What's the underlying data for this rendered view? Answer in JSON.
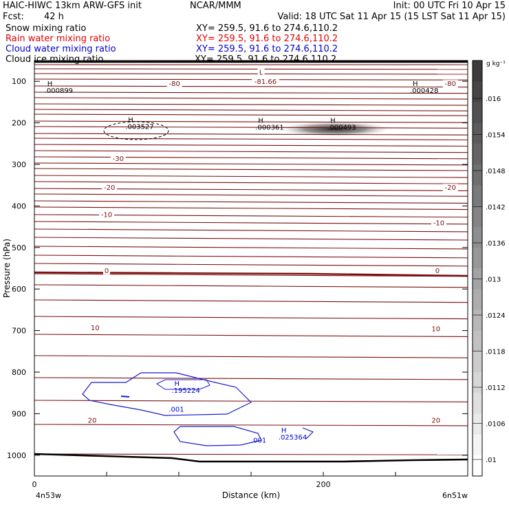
{
  "header": {
    "model": "HAIC-HIWC 13km ARW-GFS init",
    "org": "NCAR/MMM",
    "init": "Init: 00 UTC Fri 10 Apr 15",
    "fcst_label": "Fcst:",
    "fcst_value": "42 h",
    "valid": "Valid: 18 UTC Sat 11 Apr 15 (15 LST Sat 11 Apr 15)"
  },
  "fields": [
    {
      "name": "Snow mixing ratio",
      "xy": "XY= 259.5, 91.6 to 274.6,110.2",
      "color": "#000000"
    },
    {
      "name": "Rain water mixing ratio",
      "xy": "XY= 259.5, 91.6 to 274.6,110.2",
      "color": "#e00000"
    },
    {
      "name": "Cloud water mixing ratio",
      "xy": "XY= 259.5, 91.6 to 274.6,110.2",
      "color": "#0000cc"
    },
    {
      "name": "Cloud ice mixing ratio",
      "xy": "XY= 259.5, 91.6 to 274.6,110.2",
      "color": "#000000"
    }
  ],
  "chart_data": {
    "type": "cross-section",
    "xlabel": "Distance (km)",
    "ylabel": "Pressure (hPa)",
    "xlim": [
      0,
      300
    ],
    "ylim": [
      1050,
      50
    ],
    "x_ticks": [
      0,
      200
    ],
    "y_ticks": [
      100,
      200,
      300,
      400,
      500,
      600,
      700,
      800,
      900,
      1000
    ],
    "x_end_labels": [
      "4n53w",
      "6n51w"
    ],
    "temperature_color": "#7a1010",
    "temperature_labels": [
      {
        "text": "-80",
        "x": 97,
        "p": 110
      },
      {
        "text": "-81.66",
        "x": 160,
        "p": 105
      },
      {
        "text": "L",
        "x": 157,
        "p": 82
      },
      {
        "text": "-80",
        "x": 288,
        "p": 110
      },
      {
        "text": "-30",
        "x": 58,
        "p": 290
      },
      {
        "text": "-20",
        "x": 52,
        "p": 360
      },
      {
        "text": "-20",
        "x": 288,
        "p": 360
      },
      {
        "text": "-10",
        "x": 50,
        "p": 425
      },
      {
        "text": "-10",
        "x": 280,
        "p": 445
      },
      {
        "text": "0",
        "x": 50,
        "p": 560
      },
      {
        "text": "0",
        "x": 279,
        "p": 560
      },
      {
        "text": "10",
        "x": 42,
        "p": 697
      },
      {
        "text": "10",
        "x": 278,
        "p": 700
      },
      {
        "text": "20",
        "x": 40,
        "p": 920
      },
      {
        "text": "20",
        "x": 278,
        "p": 920
      }
    ],
    "maxima": [
      {
        "text": ".000899",
        "x": 7,
        "p": 128,
        "color": "#000000"
      },
      {
        "text": ".003527",
        "x": 63,
        "p": 215,
        "color": "#000000"
      },
      {
        "text": ".000361",
        "x": 153,
        "p": 216,
        "color": "#000000"
      },
      {
        "text": ".000493",
        "x": 203,
        "p": 216,
        "color": "#000000"
      },
      {
        "text": ".000428",
        "x": 260,
        "p": 128,
        "color": "#000000"
      },
      {
        "text": ".195224",
        "x": 95,
        "p": 850,
        "color": "#0000cc"
      },
      {
        "text": ".025364",
        "x": 169,
        "p": 962,
        "color": "#0000cc"
      }
    ],
    "contour_labels": [
      {
        "text": ".001",
        "x": 93,
        "p": 895,
        "color": "#0000cc"
      },
      {
        "text": ".001",
        "x": 150,
        "p": 970,
        "color": "#0000cc"
      }
    ],
    "colorbar": {
      "units": "g kg⁻¹",
      "labels": [
        ".016",
        ".0154",
        ".0148",
        ".0142",
        ".0136",
        ".013",
        ".0124",
        ".0118",
        ".0112",
        ".0106",
        ".01"
      ]
    }
  }
}
